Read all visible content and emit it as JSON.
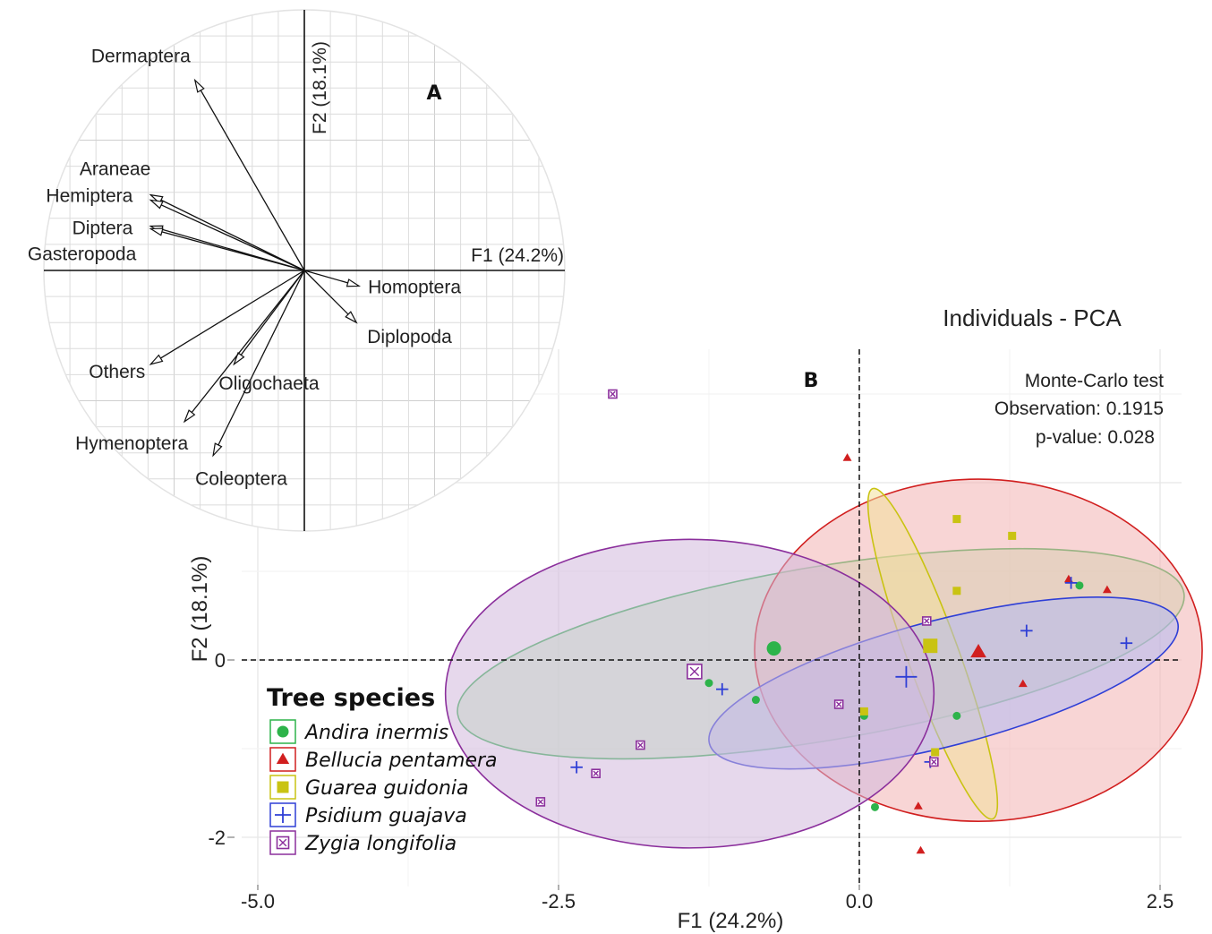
{
  "chart_data": [
    {
      "type": "scatter",
      "panel": "A",
      "xlabel": "F1 (24.2%)",
      "ylabel": "F2 (18.1%)",
      "vectors": [
        {
          "name": "Dermaptera",
          "x": -0.42,
          "y": 0.73
        },
        {
          "name": "Araneae",
          "x": -0.59,
          "y": 0.29
        },
        {
          "name": "Hemiptera",
          "x": -0.59,
          "y": 0.27
        },
        {
          "name": "Diptera",
          "x": -0.59,
          "y": 0.17
        },
        {
          "name": "Gasteropoda",
          "x": -0.59,
          "y": 0.16
        },
        {
          "name": "Homoptera",
          "x": 0.21,
          "y": -0.06
        },
        {
          "name": "Diplopoda",
          "x": 0.2,
          "y": -0.2
        },
        {
          "name": "Others",
          "x": -0.59,
          "y": -0.36
        },
        {
          "name": "Oligochaeta",
          "x": -0.27,
          "y": -0.36
        },
        {
          "name": "Hymenoptera",
          "x": -0.46,
          "y": -0.58
        },
        {
          "name": "Coleoptera",
          "x": -0.35,
          "y": -0.71
        }
      ]
    },
    {
      "type": "scatter",
      "panel": "B",
      "title": "Individuals - PCA",
      "xlabel": "F1 (24.2%)",
      "ylabel": "F2 (18.1%)",
      "xlim": [
        -5.0,
        2.7
      ],
      "ylim": [
        -2.3,
        3.1
      ],
      "x_ticks": [
        -5.0,
        -2.5,
        0.0,
        2.5
      ],
      "x_tick_labels": [
        "-5.0",
        "-2.5",
        "0.0",
        "2.5"
      ],
      "y_ticks": [
        -2,
        0
      ],
      "y_tick_labels": [
        "-2",
        "0"
      ],
      "annotation": {
        "line1": "Monte-Carlo test",
        "line2": "Observation:  0.1915",
        "line3": "p-value:  0.028"
      },
      "legend": {
        "title": "Tree species",
        "placement": "bottom-left"
      },
      "series": [
        {
          "name": "Andira inermis",
          "marker": "circle",
          "color": "#2db34a",
          "fill": "#b9f0b1",
          "ellipse": {
            "cx": -0.32,
            "cy": 0.07,
            "rx": 3.06,
            "ry": 0.98,
            "angle_deg": -9.5
          },
          "centroid": {
            "x": -0.71,
            "y": 0.13
          },
          "points": [
            {
              "x": -1.25,
              "y": -0.26
            },
            {
              "x": -0.86,
              "y": -0.45
            },
            {
              "x": 0.04,
              "y": -0.63
            },
            {
              "x": 0.13,
              "y": -1.66
            },
            {
              "x": 0.81,
              "y": -0.63
            },
            {
              "x": 1.83,
              "y": 0.84
            }
          ]
        },
        {
          "name": "Bellucia pentamera",
          "marker": "triangle",
          "color": "#d11f1f",
          "fill": "#f3b3b3",
          "ellipse": {
            "cx": 0.99,
            "cy": 0.11,
            "rx": 1.86,
            "ry": 1.93,
            "angle_deg": 0
          },
          "centroid": {
            "x": 0.99,
            "y": 0.09
          },
          "points": [
            {
              "x": -0.1,
              "y": 2.28
            },
            {
              "x": 1.74,
              "y": 0.91
            },
            {
              "x": 2.06,
              "y": 0.79
            },
            {
              "x": 1.36,
              "y": -0.27
            },
            {
              "x": 0.49,
              "y": -1.65
            },
            {
              "x": 0.51,
              "y": -2.15
            }
          ]
        },
        {
          "name": "Guarea guidonia",
          "marker": "square",
          "color": "#c9c312",
          "fill": "#f3e09a",
          "ellipse": {
            "cx": 0.61,
            "cy": 0.07,
            "rx": 1.46,
            "ry": 0.29,
            "angle_deg": 70
          },
          "centroid": {
            "x": 0.59,
            "y": 0.16
          },
          "points": [
            {
              "x": 0.81,
              "y": 1.59
            },
            {
              "x": 1.27,
              "y": 1.4
            },
            {
              "x": 0.81,
              "y": 0.78
            },
            {
              "x": 0.04,
              "y": -0.58
            },
            {
              "x": 0.63,
              "y": -1.04
            }
          ]
        },
        {
          "name": "Psidium guajava",
          "marker": "plus",
          "color": "#2f3fd6",
          "fill": "#b2b9f2",
          "ellipse": {
            "cx": 0.7,
            "cy": -0.26,
            "rx": 2.01,
            "ry": 0.71,
            "angle_deg": -14.5
          },
          "centroid": {
            "x": 0.39,
            "y": -0.19
          },
          "points": [
            {
              "x": -1.14,
              "y": -0.33
            },
            {
              "x": -2.35,
              "y": -1.21
            },
            {
              "x": 0.59,
              "y": -1.15
            },
            {
              "x": 1.39,
              "y": 0.33
            },
            {
              "x": 1.76,
              "y": 0.87
            },
            {
              "x": 2.22,
              "y": 0.19
            }
          ]
        },
        {
          "name": "Zygia longifolia",
          "marker": "boxed-cross",
          "color": "#8b2f9c",
          "fill": "#d2b8dc",
          "ellipse": {
            "cx": -1.41,
            "cy": -0.38,
            "rx": 2.03,
            "ry": 1.74,
            "angle_deg": 0
          },
          "centroid": {
            "x": -1.37,
            "y": -0.13
          },
          "points": [
            {
              "x": -2.05,
              "y": 3.0
            },
            {
              "x": -1.82,
              "y": -0.96
            },
            {
              "x": -2.19,
              "y": -1.28
            },
            {
              "x": -2.65,
              "y": -1.6
            },
            {
              "x": -0.17,
              "y": -0.5
            },
            {
              "x": 0.56,
              "y": 0.44
            },
            {
              "x": 0.62,
              "y": -1.15
            }
          ]
        }
      ]
    }
  ]
}
